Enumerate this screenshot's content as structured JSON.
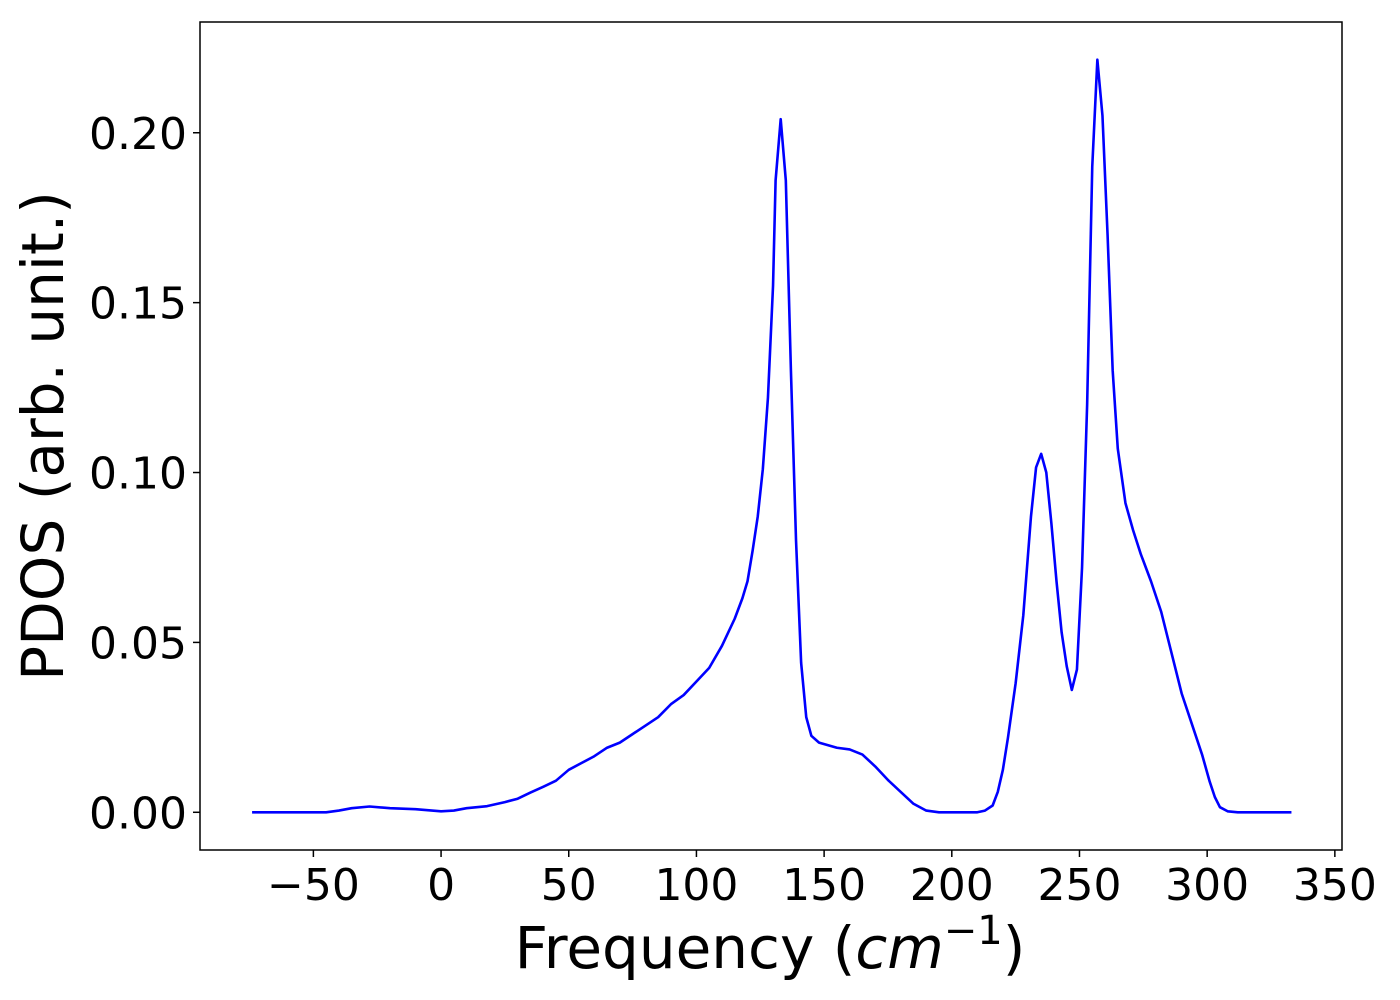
{
  "chart_data": {
    "type": "line",
    "xlabel": [
      "Frequency (",
      "cm",
      "−1",
      ")"
    ],
    "ylabel": "PDOS (arb. unit.)",
    "color": "#0000ff",
    "x": [
      -74,
      -45,
      -40,
      -35,
      -28,
      -20,
      -10,
      0,
      5,
      10,
      18,
      25,
      30,
      35,
      40,
      45,
      50,
      55,
      60,
      65,
      70,
      75,
      80,
      85,
      90,
      95,
      100,
      105,
      110,
      115,
      118,
      120,
      122,
      124,
      126,
      128,
      130,
      131,
      133,
      135,
      137,
      139,
      141,
      143,
      145,
      148,
      155,
      160,
      165,
      170,
      175,
      180,
      185,
      190,
      195,
      210,
      213,
      216,
      218,
      220,
      222,
      225,
      228,
      231,
      233,
      235,
      237,
      239,
      241,
      243,
      245,
      247,
      249,
      251,
      253,
      255,
      257,
      259,
      261,
      263,
      265,
      268,
      271,
      274,
      278,
      282,
      286,
      290,
      294,
      298,
      301,
      303,
      305,
      308,
      312,
      333
    ],
    "values": [
      0,
      0,
      0.0005,
      0.0012,
      0.0017,
      0.0012,
      0.0009,
      0.0003,
      0.0005,
      0.0012,
      0.0018,
      0.003,
      0.004,
      0.0058,
      0.0075,
      0.0093,
      0.0125,
      0.0145,
      0.0165,
      0.019,
      0.0205,
      0.023,
      0.0255,
      0.028,
      0.0318,
      0.0345,
      0.0385,
      0.0425,
      0.049,
      0.057,
      0.063,
      0.068,
      0.077,
      0.087,
      0.101,
      0.122,
      0.155,
      0.186,
      0.204,
      0.186,
      0.13,
      0.08,
      0.044,
      0.028,
      0.0225,
      0.0205,
      0.019,
      0.0185,
      0.017,
      0.0135,
      0.0095,
      0.006,
      0.0025,
      0.0005,
      0,
      0,
      0.0005,
      0.002,
      0.006,
      0.0125,
      0.022,
      0.038,
      0.058,
      0.087,
      0.1015,
      0.1055,
      0.1,
      0.085,
      0.068,
      0.053,
      0.043,
      0.036,
      0.042,
      0.072,
      0.12,
      0.19,
      0.2215,
      0.205,
      0.17,
      0.13,
      0.107,
      0.091,
      0.083,
      0.076,
      0.068,
      0.059,
      0.047,
      0.035,
      0.026,
      0.017,
      0.009,
      0.0045,
      0.0015,
      0.0003,
      0,
      0
    ],
    "xlim": [
      -94.4,
      352.8
    ],
    "ylim": [
      -0.0111,
      0.2326
    ],
    "xticks": [
      {
        "value": -50,
        "label": "−50"
      },
      0,
      50,
      100,
      150,
      200,
      250,
      300,
      350
    ],
    "yticks": [
      {
        "value": 0,
        "label": "0.00"
      },
      0.05,
      {
        "value": 0.1,
        "label": "0.10"
      },
      0.15,
      {
        "value": 0.2,
        "label": "0.20"
      }
    ]
  }
}
